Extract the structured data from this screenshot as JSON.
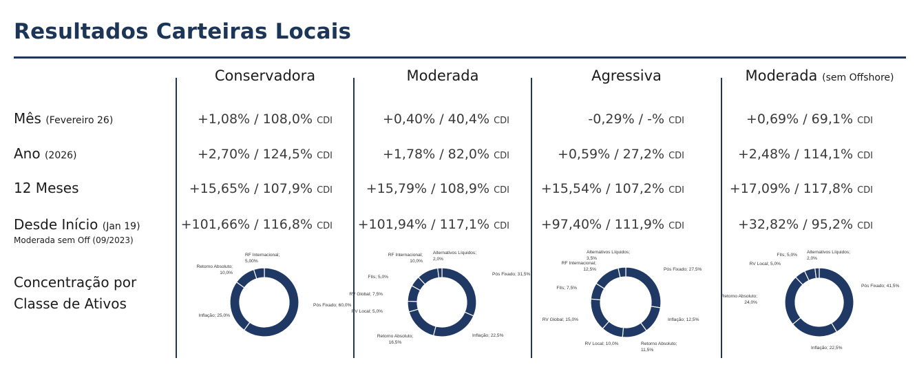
{
  "title": "Resultados Carteiras Locais",
  "columns": [
    {
      "name": "Conservadora",
      "suffix": ""
    },
    {
      "name": "Moderada",
      "suffix": ""
    },
    {
      "name": "Agressiva",
      "suffix": ""
    },
    {
      "name": "Moderada",
      "suffix": "(sem Offshore)"
    }
  ],
  "rows": [
    {
      "label": "Mês",
      "sub": "(Fevereiro 26)",
      "values": [
        "+1,08% / 108,0%",
        "+0,40% / 40,4%",
        "-0,29% / -%",
        "+0,69% / 69,1%"
      ]
    },
    {
      "label": "Ano",
      "sub": "(2026)",
      "values": [
        "+2,70% / 124,5%",
        "+1,78% / 82,0%",
        "+0,59% / 27,2%",
        "+2,48% / 114,1%"
      ]
    },
    {
      "label": "12 Meses",
      "sub": "",
      "values": [
        "+15,65% / 107,9%",
        "+15,79% / 108,9%",
        "+15,54% / 107,2%",
        "+17,09% / 117,8%"
      ]
    },
    {
      "label": "Desde Início",
      "sub": "(Jan 19)",
      "values": [
        "+101,66% / 116,8%",
        "+101,94% / 117,1%",
        "+97,40% / 111,9%",
        "+32,82% / 95,2%"
      ]
    }
  ],
  "cdi_label": "CDI",
  "note": "Moderada sem Off (09/2023)",
  "concentration_label_line1": "Concentração por",
  "concentration_label_line2": "Classe de Ativos",
  "colors": {
    "navy": "#1d3557",
    "donut": "#1f3864"
  },
  "chart_data": [
    {
      "type": "pie",
      "title": "Conservadora",
      "slices": [
        {
          "label": "Pós Fixado; 60,0%",
          "value": 60.0
        },
        {
          "label": "Inflação; 25,0%",
          "value": 25.0
        },
        {
          "label": "Retorno Absoluto; 10,0%",
          "value": 10.0
        },
        {
          "label": "RF Internacional; 5,00%",
          "value": 5.0
        }
      ]
    },
    {
      "type": "pie",
      "title": "Moderada",
      "slices": [
        {
          "label": "Pós Fixado; 31,5%",
          "value": 31.5
        },
        {
          "label": "Inflação; 22,5%",
          "value": 22.5
        },
        {
          "label": "Retorno Absoluto; 16,5%",
          "value": 16.5
        },
        {
          "label": "RV Local; 5,0%",
          "value": 5.0
        },
        {
          "label": "RV Global; 7,5%",
          "value": 7.5
        },
        {
          "label": "FIIs; 5,0%",
          "value": 5.0
        },
        {
          "label": "RF Internacional; 10,0%",
          "value": 10.0
        },
        {
          "label": "Alternativos Líquidos; 2,0%",
          "value": 2.0
        }
      ]
    },
    {
      "type": "pie",
      "title": "Agressiva",
      "slices": [
        {
          "label": "Pós Fixado; 27,5%",
          "value": 27.5
        },
        {
          "label": "Inflação; 12,5%",
          "value": 12.5
        },
        {
          "label": "Retorno Absoluto; 11,5%",
          "value": 11.5
        },
        {
          "label": "RV Local; 10,0%",
          "value": 10.0
        },
        {
          "label": "RV Global; 15,0%",
          "value": 15.0
        },
        {
          "label": "FIIs; 7,5%",
          "value": 7.5
        },
        {
          "label": "RF Internacional; 12,5%",
          "value": 12.5
        },
        {
          "label": "Alternativos Líquidos; 3,5%",
          "value": 3.5
        }
      ]
    },
    {
      "type": "pie",
      "title": "Moderada (sem Offshore)",
      "slices": [
        {
          "label": "Pós Fixado; 41,5%",
          "value": 41.5
        },
        {
          "label": "Inflação; 22,5%",
          "value": 22.5
        },
        {
          "label": "Retorno Absoluto; 24,0%",
          "value": 24.0
        },
        {
          "label": "RV Local; 5,0%",
          "value": 5.0
        },
        {
          "label": "FIIs; 5,0%",
          "value": 5.0
        },
        {
          "label": "Alternativos Líquidos; 2,0%",
          "value": 2.0
        }
      ]
    }
  ]
}
